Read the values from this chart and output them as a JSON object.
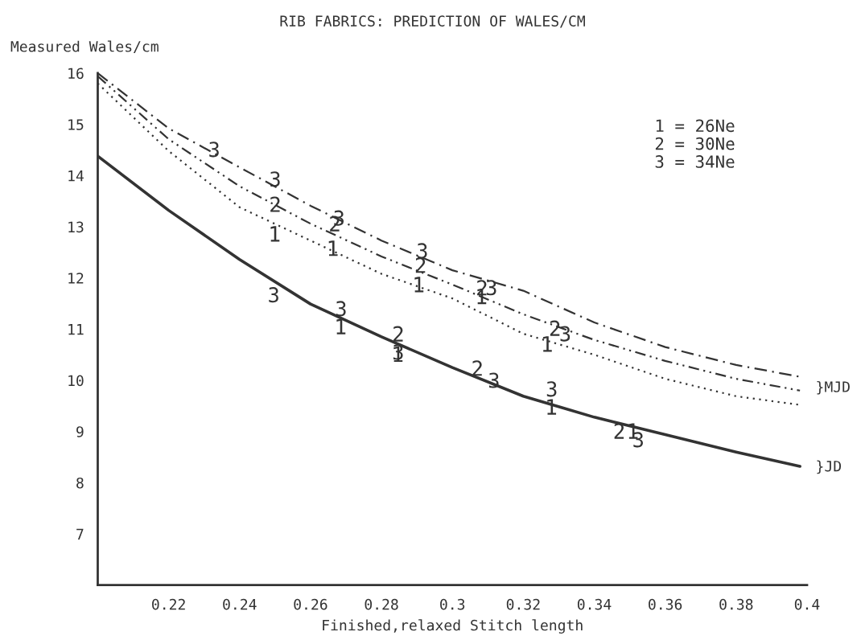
{
  "chart_data": {
    "type": "line",
    "title": "RIB FABRICS: PREDICTION OF WALES/CM",
    "xlabel": "Finished,relaxed Stitch length",
    "ylabel": "Measured Wales/cm",
    "xlim": [
      0.2,
      0.4
    ],
    "ylim": [
      6,
      16
    ],
    "xticks": [
      0.22,
      0.24,
      0.26,
      0.28,
      0.3,
      0.32,
      0.34,
      0.36,
      0.38,
      0.4
    ],
    "yticks": [
      7,
      8,
      9,
      10,
      11,
      12,
      13,
      14,
      15,
      16
    ],
    "grid": false,
    "legend": "top right",
    "series": [
      {
        "line_style": "solid",
        "color": "#333333",
        "x": [
          0.2,
          0.22,
          0.24,
          0.26,
          0.28,
          0.3,
          0.32,
          0.34,
          0.36,
          0.38,
          0.398
        ],
        "values": [
          14.38,
          13.32,
          12.36,
          11.49,
          10.85,
          10.25,
          9.69,
          9.28,
          8.94,
          8.6,
          8.32
        ]
      },
      {
        "line_style": "dotted",
        "color": "#333333",
        "x": [
          0.2,
          0.22,
          0.24,
          0.26,
          0.28,
          0.3,
          0.32,
          0.34,
          0.36,
          0.38,
          0.398
        ],
        "values": [
          15.8,
          14.48,
          13.38,
          12.73,
          12.08,
          11.6,
          10.91,
          10.5,
          10.03,
          9.69,
          9.52
        ]
      },
      {
        "line_style": "dashdotdot",
        "color": "#333333",
        "x": [
          0.2,
          0.22,
          0.24,
          0.26,
          0.28,
          0.3,
          0.32,
          0.34,
          0.36,
          0.38,
          0.398
        ],
        "values": [
          15.94,
          14.71,
          13.79,
          13.06,
          12.42,
          11.87,
          11.29,
          10.79,
          10.38,
          10.03,
          9.8
        ]
      },
      {
        "line_style": "dashdot",
        "color": "#333333",
        "x": [
          0.2,
          0.22,
          0.24,
          0.26,
          0.28,
          0.3,
          0.32,
          0.34,
          0.36,
          0.38,
          0.398
        ],
        "values": [
          16,
          14.92,
          14.16,
          13.41,
          12.73,
          12.15,
          11.75,
          11.13,
          10.65,
          10.3,
          10.07
        ]
      },
      {
        "type": "scatter",
        "name": "1 = 26Ne",
        "color": "#333333",
        "x": [
          0.25,
          0.2664,
          0.2906,
          0.3083,
          0.3268,
          0.2686,
          0.2847,
          0.328,
          0.351
        ],
        "values": [
          12.86,
          12.58,
          11.87,
          11.64,
          10.71,
          11.05,
          10.51,
          9.48,
          9.01
        ]
      },
      {
        "type": "scatter",
        "name": "2 = 30Ne",
        "color": "#333333",
        "x": [
          0.25,
          0.2668,
          0.291,
          0.3083,
          0.3289,
          0.2847,
          0.307,
          0.347
        ],
        "values": [
          13.44,
          13.06,
          12.25,
          11.81,
          11.02,
          10.91,
          10.24,
          9.01
        ]
      },
      {
        "type": "scatter",
        "name": "3 = 34Ne",
        "color": "#333333",
        "x": [
          0.2328,
          0.25,
          0.268,
          0.2915,
          0.311,
          0.3318,
          0.2496,
          0.2686,
          0.2847,
          0.3117,
          0.328,
          0.3524
        ],
        "values": [
          14.51,
          13.93,
          13.17,
          12.53,
          11.81,
          10.91,
          11.67,
          11.4,
          10.55,
          10.0,
          9.83,
          8.84
        ]
      }
    ],
    "annotations": [
      "}MJD",
      "}JD"
    ]
  }
}
